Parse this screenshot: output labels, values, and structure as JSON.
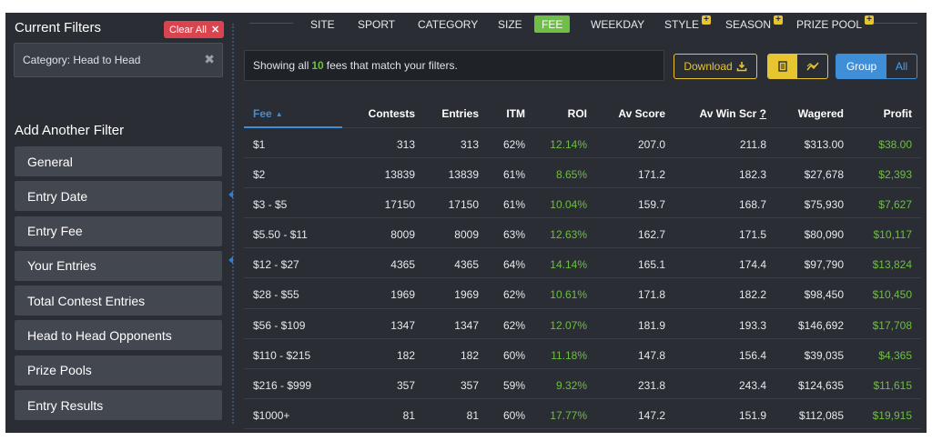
{
  "sidebar": {
    "current_filters_title": "Current Filters",
    "clear_all_label": "Clear All",
    "active_filter": "Category: Head to Head",
    "add_filter_title": "Add Another Filter",
    "filters": [
      "General",
      "Entry Date",
      "Entry Fee",
      "Your Entries",
      "Total Contest Entries",
      "Head to Head Opponents",
      "Prize Pools",
      "Entry Results"
    ]
  },
  "tabs": [
    {
      "label": "SITE",
      "plus": false
    },
    {
      "label": "SPORT",
      "plus": false
    },
    {
      "label": "CATEGORY",
      "plus": false
    },
    {
      "label": "SIZE",
      "plus": false
    },
    {
      "label": "FEE",
      "plus": false,
      "active": true
    },
    {
      "label": "WEEKDAY",
      "plus": false
    },
    {
      "label": "STYLE",
      "plus": true
    },
    {
      "label": "SEASON",
      "plus": true
    },
    {
      "label": "PRIZE POOL",
      "plus": true
    }
  ],
  "info": {
    "prefix": "Showing all",
    "count": "10",
    "suffix": "fees that match your filters."
  },
  "toolbar": {
    "download_label": "Download",
    "group_label": "Group",
    "all_label": "All"
  },
  "colors": {
    "accent_green": "#6fbe45",
    "accent_blue": "#3e8fd8",
    "accent_yellow": "#e6c530",
    "danger": "#d9444f"
  },
  "table": {
    "headers": {
      "fee": "Fee",
      "contests": "Contests",
      "entries": "Entries",
      "itm": "ITM",
      "roi": "ROI",
      "av_score": "Av Score",
      "av_win_scr": "Av Win Scr",
      "av_win_q": "?",
      "wagered": "Wagered",
      "profit": "Profit"
    },
    "rows": [
      {
        "fee": "$1",
        "contests": "313",
        "entries": "313",
        "itm": "62%",
        "roi": "12.14%",
        "av_score": "207.0",
        "av_win_scr": "211.8",
        "wagered": "$313.00",
        "profit": "$38.00"
      },
      {
        "fee": "$2",
        "contests": "13839",
        "entries": "13839",
        "itm": "61%",
        "roi": "8.65%",
        "av_score": "171.2",
        "av_win_scr": "182.3",
        "wagered": "$27,678",
        "profit": "$2,393"
      },
      {
        "fee": "$3 - $5",
        "contests": "17150",
        "entries": "17150",
        "itm": "61%",
        "roi": "10.04%",
        "av_score": "159.7",
        "av_win_scr": "168.7",
        "wagered": "$75,930",
        "profit": "$7,627"
      },
      {
        "fee": "$5.50 - $11",
        "contests": "8009",
        "entries": "8009",
        "itm": "63%",
        "roi": "12.63%",
        "av_score": "162.7",
        "av_win_scr": "171.5",
        "wagered": "$80,090",
        "profit": "$10,117"
      },
      {
        "fee": "$12 - $27",
        "contests": "4365",
        "entries": "4365",
        "itm": "64%",
        "roi": "14.14%",
        "av_score": "165.1",
        "av_win_scr": "174.4",
        "wagered": "$97,790",
        "profit": "$13,824"
      },
      {
        "fee": "$28 - $55",
        "contests": "1969",
        "entries": "1969",
        "itm": "62%",
        "roi": "10.61%",
        "av_score": "171.8",
        "av_win_scr": "182.2",
        "wagered": "$98,450",
        "profit": "$10,450"
      },
      {
        "fee": "$56 - $109",
        "contests": "1347",
        "entries": "1347",
        "itm": "62%",
        "roi": "12.07%",
        "av_score": "181.9",
        "av_win_scr": "193.3",
        "wagered": "$146,692",
        "profit": "$17,708"
      },
      {
        "fee": "$110 - $215",
        "contests": "182",
        "entries": "182",
        "itm": "60%",
        "roi": "11.18%",
        "av_score": "147.8",
        "av_win_scr": "156.4",
        "wagered": "$39,035",
        "profit": "$4,365"
      },
      {
        "fee": "$216 - $999",
        "contests": "357",
        "entries": "357",
        "itm": "59%",
        "roi": "9.32%",
        "av_score": "231.8",
        "av_win_scr": "243.4",
        "wagered": "$124,635",
        "profit": "$11,615"
      },
      {
        "fee": "$1000+",
        "contests": "81",
        "entries": "81",
        "itm": "60%",
        "roi": "17.77%",
        "av_score": "147.2",
        "av_win_scr": "151.9",
        "wagered": "$112,085",
        "profit": "$19,915"
      }
    ]
  }
}
